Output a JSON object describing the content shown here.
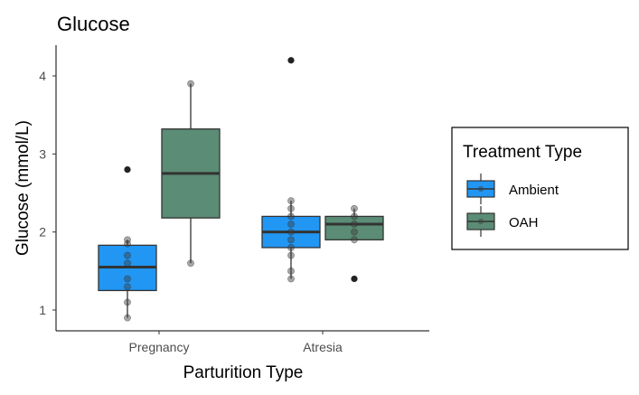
{
  "chart_data": {
    "type": "boxplot",
    "title": "Glucose",
    "xlabel": "Parturition Type",
    "ylabel": "Glucose (mmol/L)",
    "categories": [
      "Pregnancy",
      "Atresia"
    ],
    "ylim": [
      0.75,
      4.35
    ],
    "yticks": [
      1,
      2,
      3,
      4
    ],
    "grid": false,
    "legend": {
      "title": "Treatment Type",
      "position": "right",
      "entries": [
        {
          "name": "Ambient",
          "color": "#2196F3"
        },
        {
          "name": "OAH",
          "color": "#5B8C75"
        }
      ]
    },
    "series": [
      {
        "name": "Ambient",
        "color": "#2196F3",
        "boxes": [
          {
            "category": "Pregnancy",
            "q1": 1.25,
            "median": 1.55,
            "q3": 1.83,
            "whisker_low": 0.9,
            "whisker_high": 1.9,
            "outliers": [
              2.8
            ],
            "points": [
              0.9,
              1.1,
              1.3,
              1.4,
              1.6,
              1.7,
              1.85,
              1.9
            ]
          },
          {
            "category": "Atresia",
            "q1": 1.8,
            "median": 2.0,
            "q3": 2.2,
            "whisker_low": 1.4,
            "whisker_high": 2.4,
            "outliers": [
              4.2
            ],
            "points": [
              1.4,
              1.5,
              1.7,
              1.8,
              1.9,
              2.0,
              2.1,
              2.2,
              2.3,
              2.4
            ]
          }
        ]
      },
      {
        "name": "OAH",
        "color": "#5B8C75",
        "boxes": [
          {
            "category": "Pregnancy",
            "q1": 2.18,
            "median": 2.75,
            "q3": 3.32,
            "whisker_low": 1.6,
            "whisker_high": 3.9,
            "outliers": [],
            "points": [
              1.6,
              3.9
            ]
          },
          {
            "category": "Atresia",
            "q1": 1.9,
            "median": 2.1,
            "q3": 2.2,
            "whisker_low": 1.9,
            "whisker_high": 2.3,
            "outliers": [
              1.4
            ],
            "points": [
              1.9,
              2.0,
              2.1,
              2.2,
              2.3
            ]
          }
        ]
      }
    ]
  }
}
